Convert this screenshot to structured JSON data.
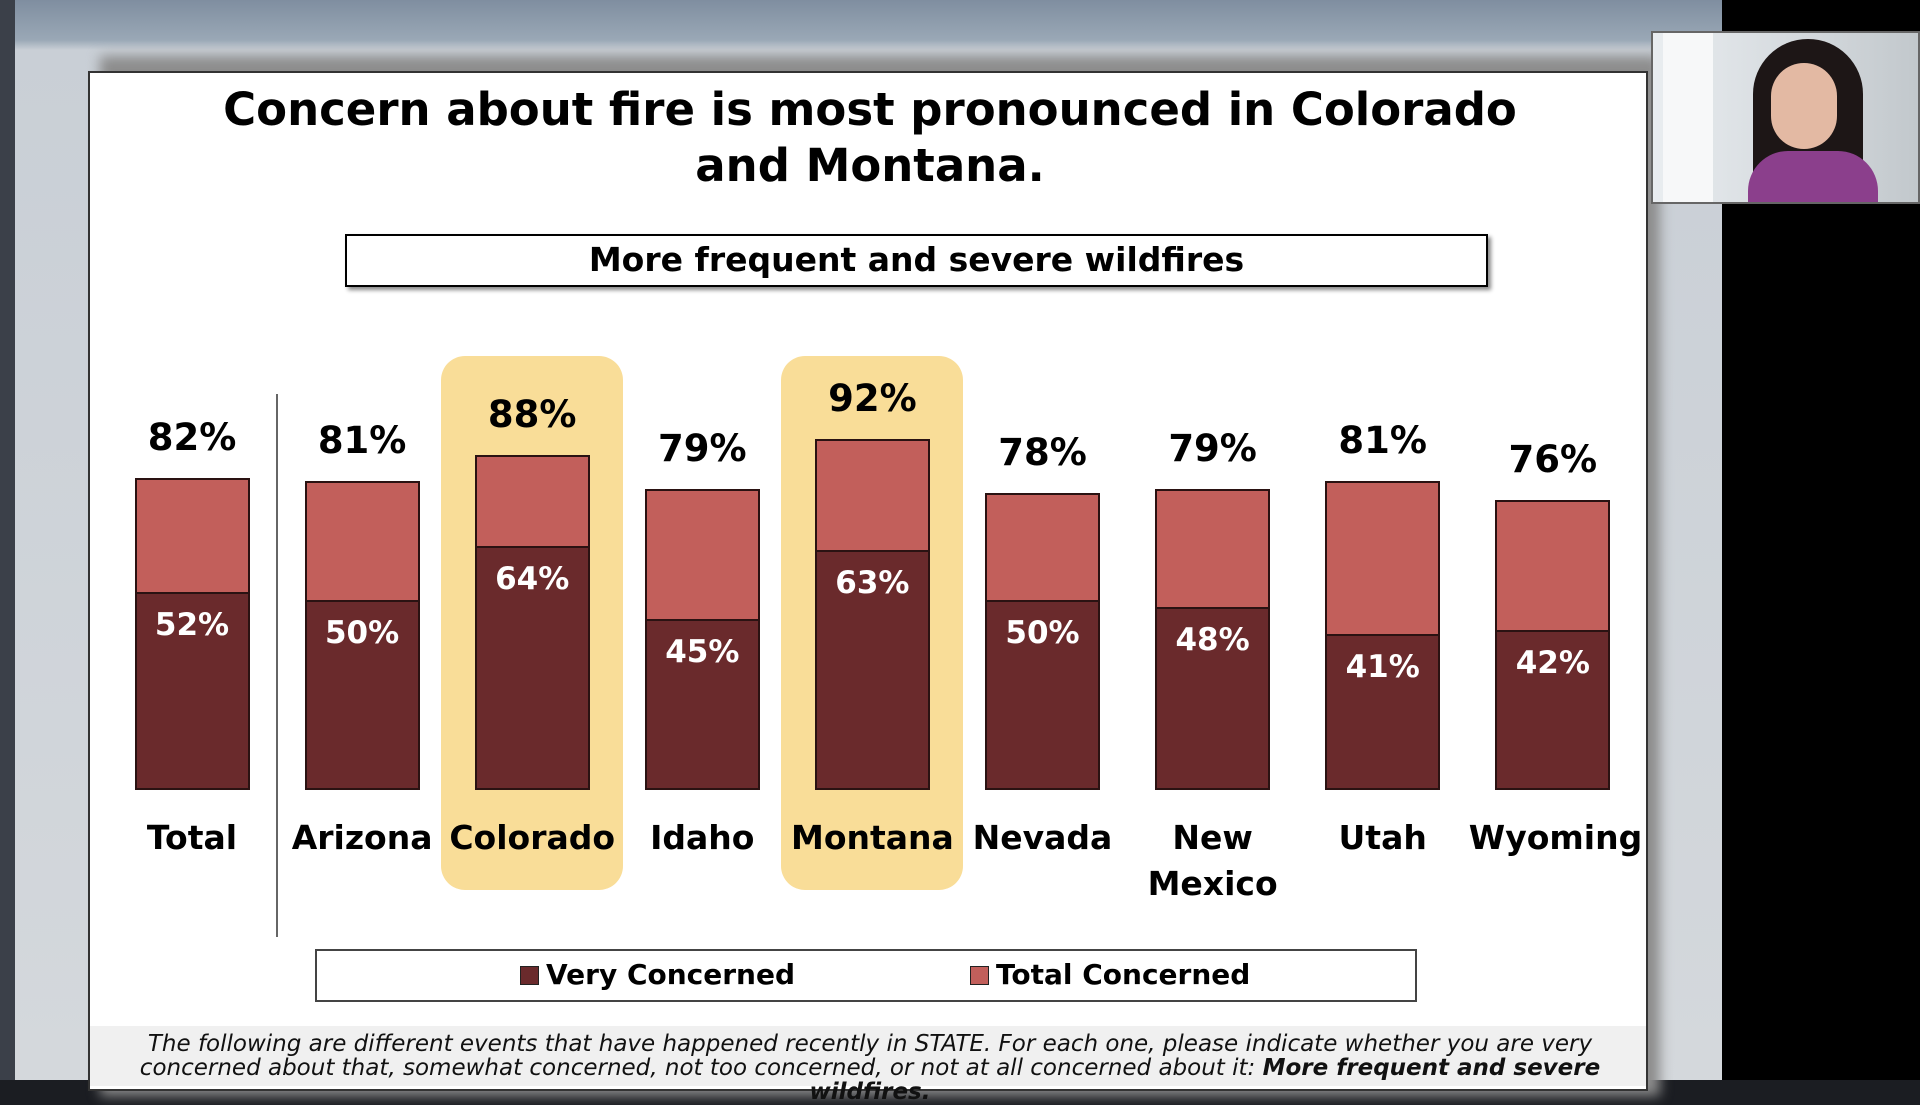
{
  "chart_data": {
    "type": "bar",
    "title": "Concern about fire is most pronounced in Colorado and Montana.",
    "subtitle": "More frequent and severe wildfires",
    "categories": [
      "Total",
      "Arizona",
      "Colorado",
      "Idaho",
      "Montana",
      "Nevada",
      "New Mexico",
      "Utah",
      "Wyoming"
    ],
    "highlight": [
      2,
      4
    ],
    "series": [
      {
        "name": "Very Concerned",
        "color": "#6a2a2c",
        "values": [
          52,
          50,
          64,
          45,
          63,
          50,
          48,
          41,
          42
        ],
        "value_labels": [
          "52%",
          "50%",
          "64%",
          "45%",
          "63%",
          "50%",
          "48%",
          "41%",
          "42%"
        ]
      },
      {
        "name": "Total Concerned",
        "color": "#c25f5b",
        "values": [
          82,
          81,
          88,
          79,
          92,
          78,
          79,
          81,
          76
        ],
        "value_labels": [
          "82%",
          "81%",
          "88%",
          "79%",
          "92%",
          "78%",
          "79%",
          "81%",
          "76%"
        ]
      }
    ],
    "footnote": "The following are different events that have happened recently in STATE. For each one, please indicate whether you are very concerned about that, somewhat concerned, not too concerned, or not at all concerned about it: ",
    "footnote_emphasis": "More frequent and severe wildfires."
  }
}
